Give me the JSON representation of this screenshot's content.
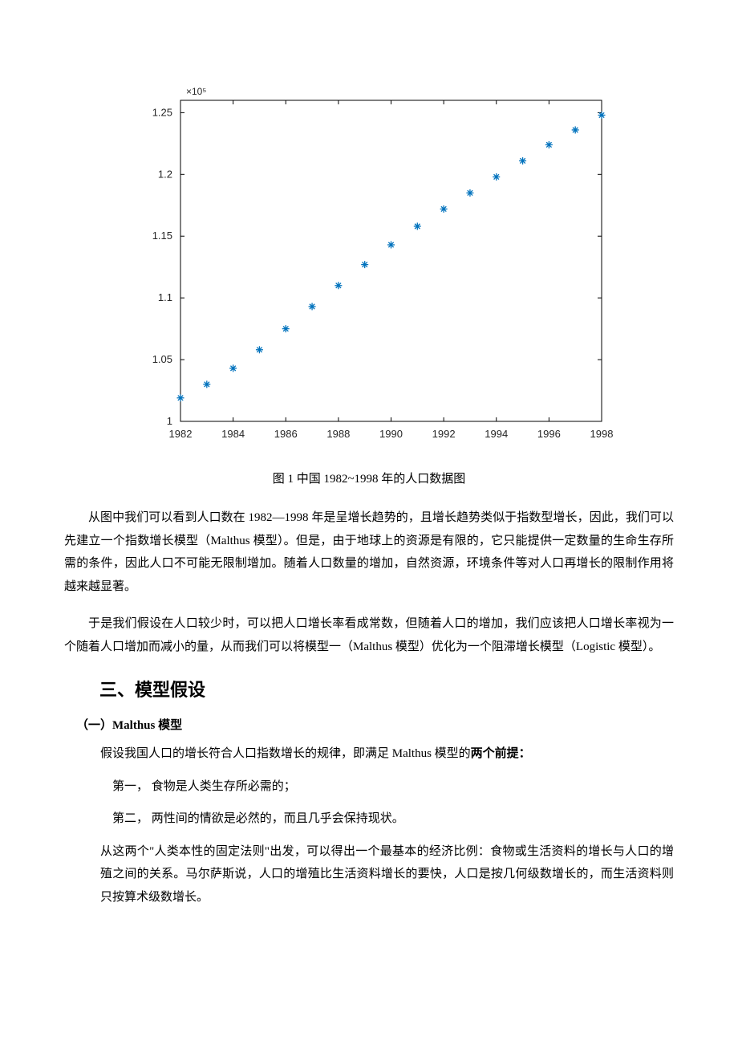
{
  "chart": {
    "type": "scatter",
    "x_years": [
      1982,
      1983,
      1984,
      1985,
      1986,
      1987,
      1988,
      1989,
      1990,
      1991,
      1992,
      1993,
      1994,
      1995,
      1996,
      1997,
      1998
    ],
    "y_values": [
      1.019,
      1.03,
      1.043,
      1.058,
      1.075,
      1.093,
      1.11,
      1.127,
      1.143,
      1.158,
      1.172,
      1.185,
      1.198,
      1.211,
      1.224,
      1.236,
      1.248
    ],
    "marker_color": "#0072bd",
    "marker_style": "asterisk",
    "marker_size": 9,
    "xlim": [
      1982,
      1998
    ],
    "ylim": [
      1.0,
      1.26
    ],
    "xtick_positions": [
      1982,
      1984,
      1986,
      1988,
      1990,
      1992,
      1994,
      1996,
      1998
    ],
    "xtick_labels": [
      "1982",
      "1984",
      "1986",
      "1988",
      "1990",
      "1992",
      "1994",
      "1996",
      "1998"
    ],
    "ytick_positions": [
      1.0,
      1.05,
      1.1,
      1.15,
      1.2,
      1.25
    ],
    "ytick_labels": [
      "1",
      "1.05",
      "1.1",
      "1.15",
      "1.2",
      "1.25"
    ],
    "exponent_label": "×10⁵",
    "axis_color": "#000000",
    "tick_color": "#000000",
    "background_color": "#ffffff",
    "tick_fontsize": 13,
    "exponent_fontsize": 12,
    "tick_fontcolor": "#262626"
  },
  "caption": "图 1 中国 1982~1998 年的人口数据图",
  "para1": "从图中我们可以看到人口数在 1982—1998 年是呈增长趋势的，且增长趋势类似于指数型增长，因此，我们可以先建立一个指数增长模型（Malthus 模型）。但是，由于地球上的资源是有限的，它只能提供一定数量的生命生存所需的条件，因此人口不可能无限制增加。随着人口数量的增加，自然资源，环境条件等对人口再增长的限制作用将越来越显著。",
  "para2": "于是我们假设在人口较少时，可以把人口增长率看成常数，但随着人口的增加，我们应该把人口增长率视为一个随着人口增加而减小的量，从而我们可以将模型一（Malthus 模型）优化为一个阻滞增长模型（Logistic 模型）。",
  "section_heading": "三、模型假设",
  "subsection1": "（一）Malthus 模型",
  "sub1_para_prefix": "假设我国人口的增长符合人口指数增长的规律，即满足 Malthus 模型的",
  "sub1_para_bold": "两个前提：",
  "list_item1_prefix": "第一，",
  "list_item1_text": "  食物是人类生存所必需的；",
  "list_item2_prefix": "第二，",
  "list_item2_text": "  两性间的情欲是必然的，而且几乎会保持现状。",
  "para3": "从这两个\"人类本性的固定法则\"出发，可以得出一个最基本的经济比例：食物或生活资料的增长与人口的增殖之间的关系。马尔萨斯说，人口的增殖比生活资料增长的要快，人口是按几何级数增长的，而生活资料则只按算术级数增长。"
}
